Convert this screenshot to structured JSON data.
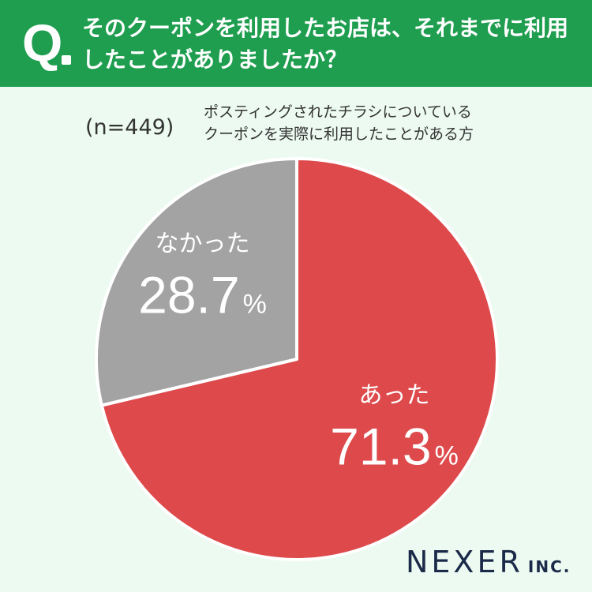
{
  "header": {
    "q_mark": "Q",
    "question_line1": "そのクーポンを利用したお店は、それまでに利用",
    "question_line2": "したことがありましたか？"
  },
  "sample": {
    "n_label": "(n=449)",
    "desc_line1": "ポスティングされたチラシについている",
    "desc_line2": "クーポンを実際に利用したことがある方"
  },
  "chart_data": {
    "type": "pie",
    "categories": [
      "あった",
      "なかった"
    ],
    "values": [
      71.3,
      28.7
    ],
    "value_labels": [
      "71.3",
      "28.7"
    ],
    "unit": "%",
    "colors": [
      "#de4a4b",
      "#a3a3a3"
    ]
  },
  "brand": {
    "name": "NEXER",
    "suffix": "INC."
  }
}
